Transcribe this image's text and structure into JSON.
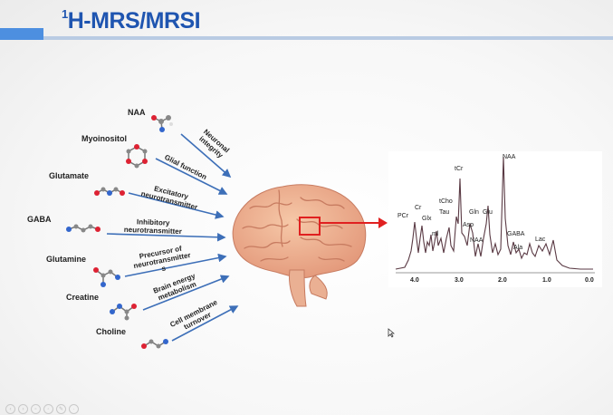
{
  "slide": {
    "title_sup": "1",
    "title_main": "H-MRS/MRSI"
  },
  "metabolites": [
    {
      "name": "NAA",
      "function": "Neuronal\nintegrity"
    },
    {
      "name": "Myoinositol",
      "function": "Glial function"
    },
    {
      "name": "Glutamate",
      "function": "Excitatory\nneurotransmitter"
    },
    {
      "name": "GABA",
      "function": "Inhibitory\nneurotransmitter"
    },
    {
      "name": "Glutamine",
      "function": "Precursor of\nneurotransmitter\ns"
    },
    {
      "name": "Creatine",
      "function": "Brain energy\nmetabolism"
    },
    {
      "name": "Choline",
      "function": "Cell membrane\nturnover"
    }
  ],
  "spectrum": {
    "peaks": [
      "NAA",
      "tCr",
      "tCho",
      "Cr",
      "PCr",
      "Glx",
      "ml",
      "Tau",
      "Gln",
      "Glu",
      "Asp",
      "NAA",
      "GABA",
      "Ala",
      "Lac"
    ],
    "x_ticks": [
      "4.0",
      "3.0",
      "2.0",
      "1.0",
      "0.0"
    ]
  },
  "colors": {
    "title": "#1f55b0",
    "accent_bar": "#4d8fe0",
    "arrow": "#3d6fb8",
    "highlight": "#e02020",
    "spectrum_line": "#5a3a44"
  },
  "controls": [
    "prev-icon",
    "next-icon",
    "grid-icon",
    "zoom-icon",
    "pen-icon",
    "more-icon"
  ]
}
